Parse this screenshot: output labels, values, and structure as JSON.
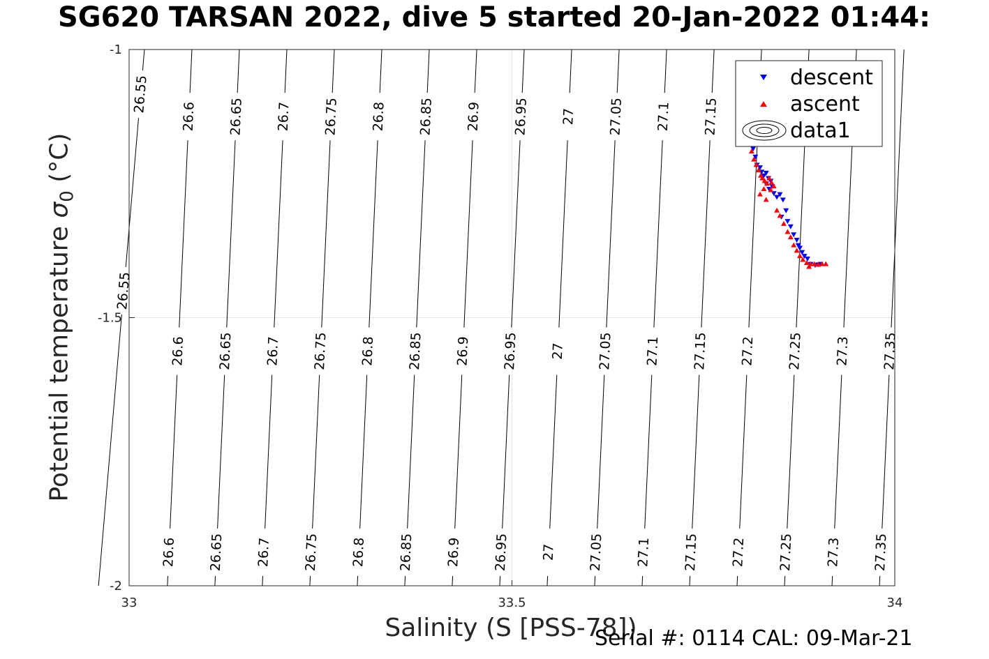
{
  "title": "SG620 TARSAN 2022, dive 5 started 20-Jan-2022 01:44:",
  "footer": "Serial #: 0114  CAL: 09-Mar-21",
  "chart_data": {
    "type": "scatter",
    "title": "SG620 TARSAN 2022, dive 5 started 20-Jan-2022 01:44:",
    "xlabel": "Salinity (S [PSS-78])",
    "ylabel_text": "Potential temperature",
    "ylabel_symbol": "σ",
    "ylabel_subscript": "0",
    "ylabel_unit": "(°C)",
    "xlim": [
      33,
      34
    ],
    "ylim": [
      -2,
      -1
    ],
    "xticks": [
      33,
      33.5,
      34
    ],
    "yticks": [
      -2,
      -1.5,
      -1
    ],
    "xtick_labels": [
      "33",
      "33.5",
      "34"
    ],
    "ytick_labels": [
      "-2",
      "-1.5",
      "-1"
    ],
    "grid": true,
    "legend_position": "top-right",
    "legend": [
      "descent",
      "ascent",
      "data1"
    ],
    "contours": {
      "name": "data1",
      "color": "#000000",
      "levels": [
        {
          "level": "26.55",
          "x_top": 33.02,
          "x_bottom": 32.96,
          "label_x": [
            33.015,
            32.993
          ]
        },
        {
          "level": "26.6",
          "x_top": 33.082,
          "x_bottom": 33.05,
          "label_x": [
            33.078,
            33.064,
            33.052
          ]
        },
        {
          "level": "26.65",
          "x_top": 33.144,
          "x_bottom": 33.112,
          "label_x": [
            33.14,
            33.126,
            33.114
          ]
        },
        {
          "level": "26.7",
          "x_top": 33.206,
          "x_bottom": 33.174,
          "label_x": [
            33.202,
            33.188,
            33.176
          ]
        },
        {
          "level": "26.75",
          "x_top": 33.268,
          "x_bottom": 33.236,
          "label_x": [
            33.264,
            33.25,
            33.238
          ]
        },
        {
          "level": "26.8",
          "x_top": 33.33,
          "x_bottom": 33.298,
          "label_x": [
            33.326,
            33.312,
            33.3
          ]
        },
        {
          "level": "26.85",
          "x_top": 33.392,
          "x_bottom": 33.36,
          "label_x": [
            33.388,
            33.374,
            33.362
          ]
        },
        {
          "level": "26.9",
          "x_top": 33.454,
          "x_bottom": 33.422,
          "label_x": [
            33.45,
            33.436,
            33.424
          ]
        },
        {
          "level": "26.95",
          "x_top": 33.516,
          "x_bottom": 33.484,
          "label_x": [
            33.512,
            33.498,
            33.486
          ]
        },
        {
          "level": "27",
          "x_top": 33.578,
          "x_bottom": 33.546,
          "label_x": [
            33.574,
            33.56,
            33.548
          ]
        },
        {
          "level": "27.05",
          "x_top": 33.64,
          "x_bottom": 33.608,
          "label_x": [
            33.636,
            33.622,
            33.61
          ]
        },
        {
          "level": "27.1",
          "x_top": 33.702,
          "x_bottom": 33.67,
          "label_x": [
            33.698,
            33.684,
            33.672
          ]
        },
        {
          "level": "27.15",
          "x_top": 33.764,
          "x_bottom": 33.732,
          "label_x": [
            33.76,
            33.746,
            33.734
          ]
        },
        {
          "level": "27.2",
          "x_top": 33.826,
          "x_bottom": 33.794,
          "label_x": [
            33.808,
            33.796
          ]
        },
        {
          "level": "27.25",
          "x_top": 33.888,
          "x_bottom": 33.856,
          "label_x": [
            33.87,
            33.858
          ]
        },
        {
          "level": "27.3",
          "x_top": 33.95,
          "x_bottom": 33.918,
          "label_x": [
            33.932,
            33.92
          ]
        },
        {
          "level": "27.35",
          "x_top": 34.012,
          "x_bottom": 33.98,
          "label_x": [
            33.994,
            33.982
          ]
        }
      ]
    },
    "series": [
      {
        "name": "descent",
        "marker": "triangle-down",
        "color": "#0000ff",
        "x": [
          33.815,
          33.818,
          33.82,
          33.824,
          33.826,
          33.829,
          33.832,
          33.835,
          33.832,
          33.838,
          33.84,
          33.836,
          33.842,
          33.846,
          33.85,
          33.854,
          33.858,
          33.852,
          33.86,
          33.864,
          33.868,
          33.872,
          33.874,
          33.876,
          33.879,
          33.882,
          33.886,
          33.89,
          33.896,
          33.9,
          33.903
        ],
        "y": [
          -1.185,
          -1.2,
          -1.215,
          -1.22,
          -1.228,
          -1.235,
          -1.23,
          -1.24,
          -1.25,
          -1.245,
          -1.255,
          -1.26,
          -1.268,
          -1.275,
          -1.27,
          -1.28,
          -1.3,
          -1.312,
          -1.32,
          -1.33,
          -1.345,
          -1.355,
          -1.365,
          -1.37,
          -1.378,
          -1.385,
          -1.39,
          -1.4,
          -1.402,
          -1.401,
          -1.4
        ]
      },
      {
        "name": "ascent",
        "marker": "triangle-up",
        "color": "#ff0000",
        "x": [
          33.813,
          33.816,
          33.819,
          33.822,
          33.825,
          33.827,
          33.83,
          33.833,
          33.836,
          33.839,
          33.842,
          33.829,
          33.824,
          33.832,
          33.838,
          33.846,
          33.85,
          33.855,
          33.86,
          33.864,
          33.868,
          33.872,
          33.876,
          33.88,
          33.885,
          33.89,
          33.895,
          33.9,
          33.905,
          33.91,
          33.888
        ],
        "y": [
          -1.19,
          -1.205,
          -1.215,
          -1.225,
          -1.235,
          -1.24,
          -1.245,
          -1.25,
          -1.24,
          -1.248,
          -1.255,
          -1.26,
          -1.27,
          -1.28,
          -1.262,
          -1.3,
          -1.31,
          -1.325,
          -1.34,
          -1.35,
          -1.365,
          -1.375,
          -1.385,
          -1.392,
          -1.398,
          -1.4,
          -1.4,
          -1.401,
          -1.4,
          -1.4,
          -1.405
        ]
      }
    ]
  }
}
